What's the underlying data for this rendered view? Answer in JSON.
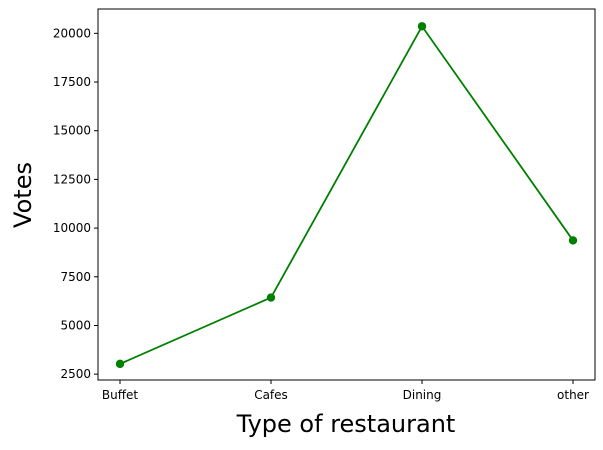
{
  "chart_data": {
    "type": "line",
    "title": "",
    "xlabel": "Type of restaurant",
    "ylabel": "Votes",
    "categories": [
      "Buffet",
      "Cafes",
      "Dining",
      "other"
    ],
    "series": [
      {
        "values": [
          3028,
          6434,
          20363,
          9367
        ],
        "color": "#008000",
        "marker": "circle"
      }
    ],
    "ylim": [
      2200,
      21250
    ],
    "yticks": [
      2500,
      5000,
      7500,
      10000,
      12500,
      15000,
      17500,
      20000
    ],
    "ytick_labels": [
      "2500",
      "5000",
      "7500",
      "10000",
      "12500",
      "15000",
      "17500",
      "20000"
    ],
    "grid": false,
    "legend": "none"
  }
}
